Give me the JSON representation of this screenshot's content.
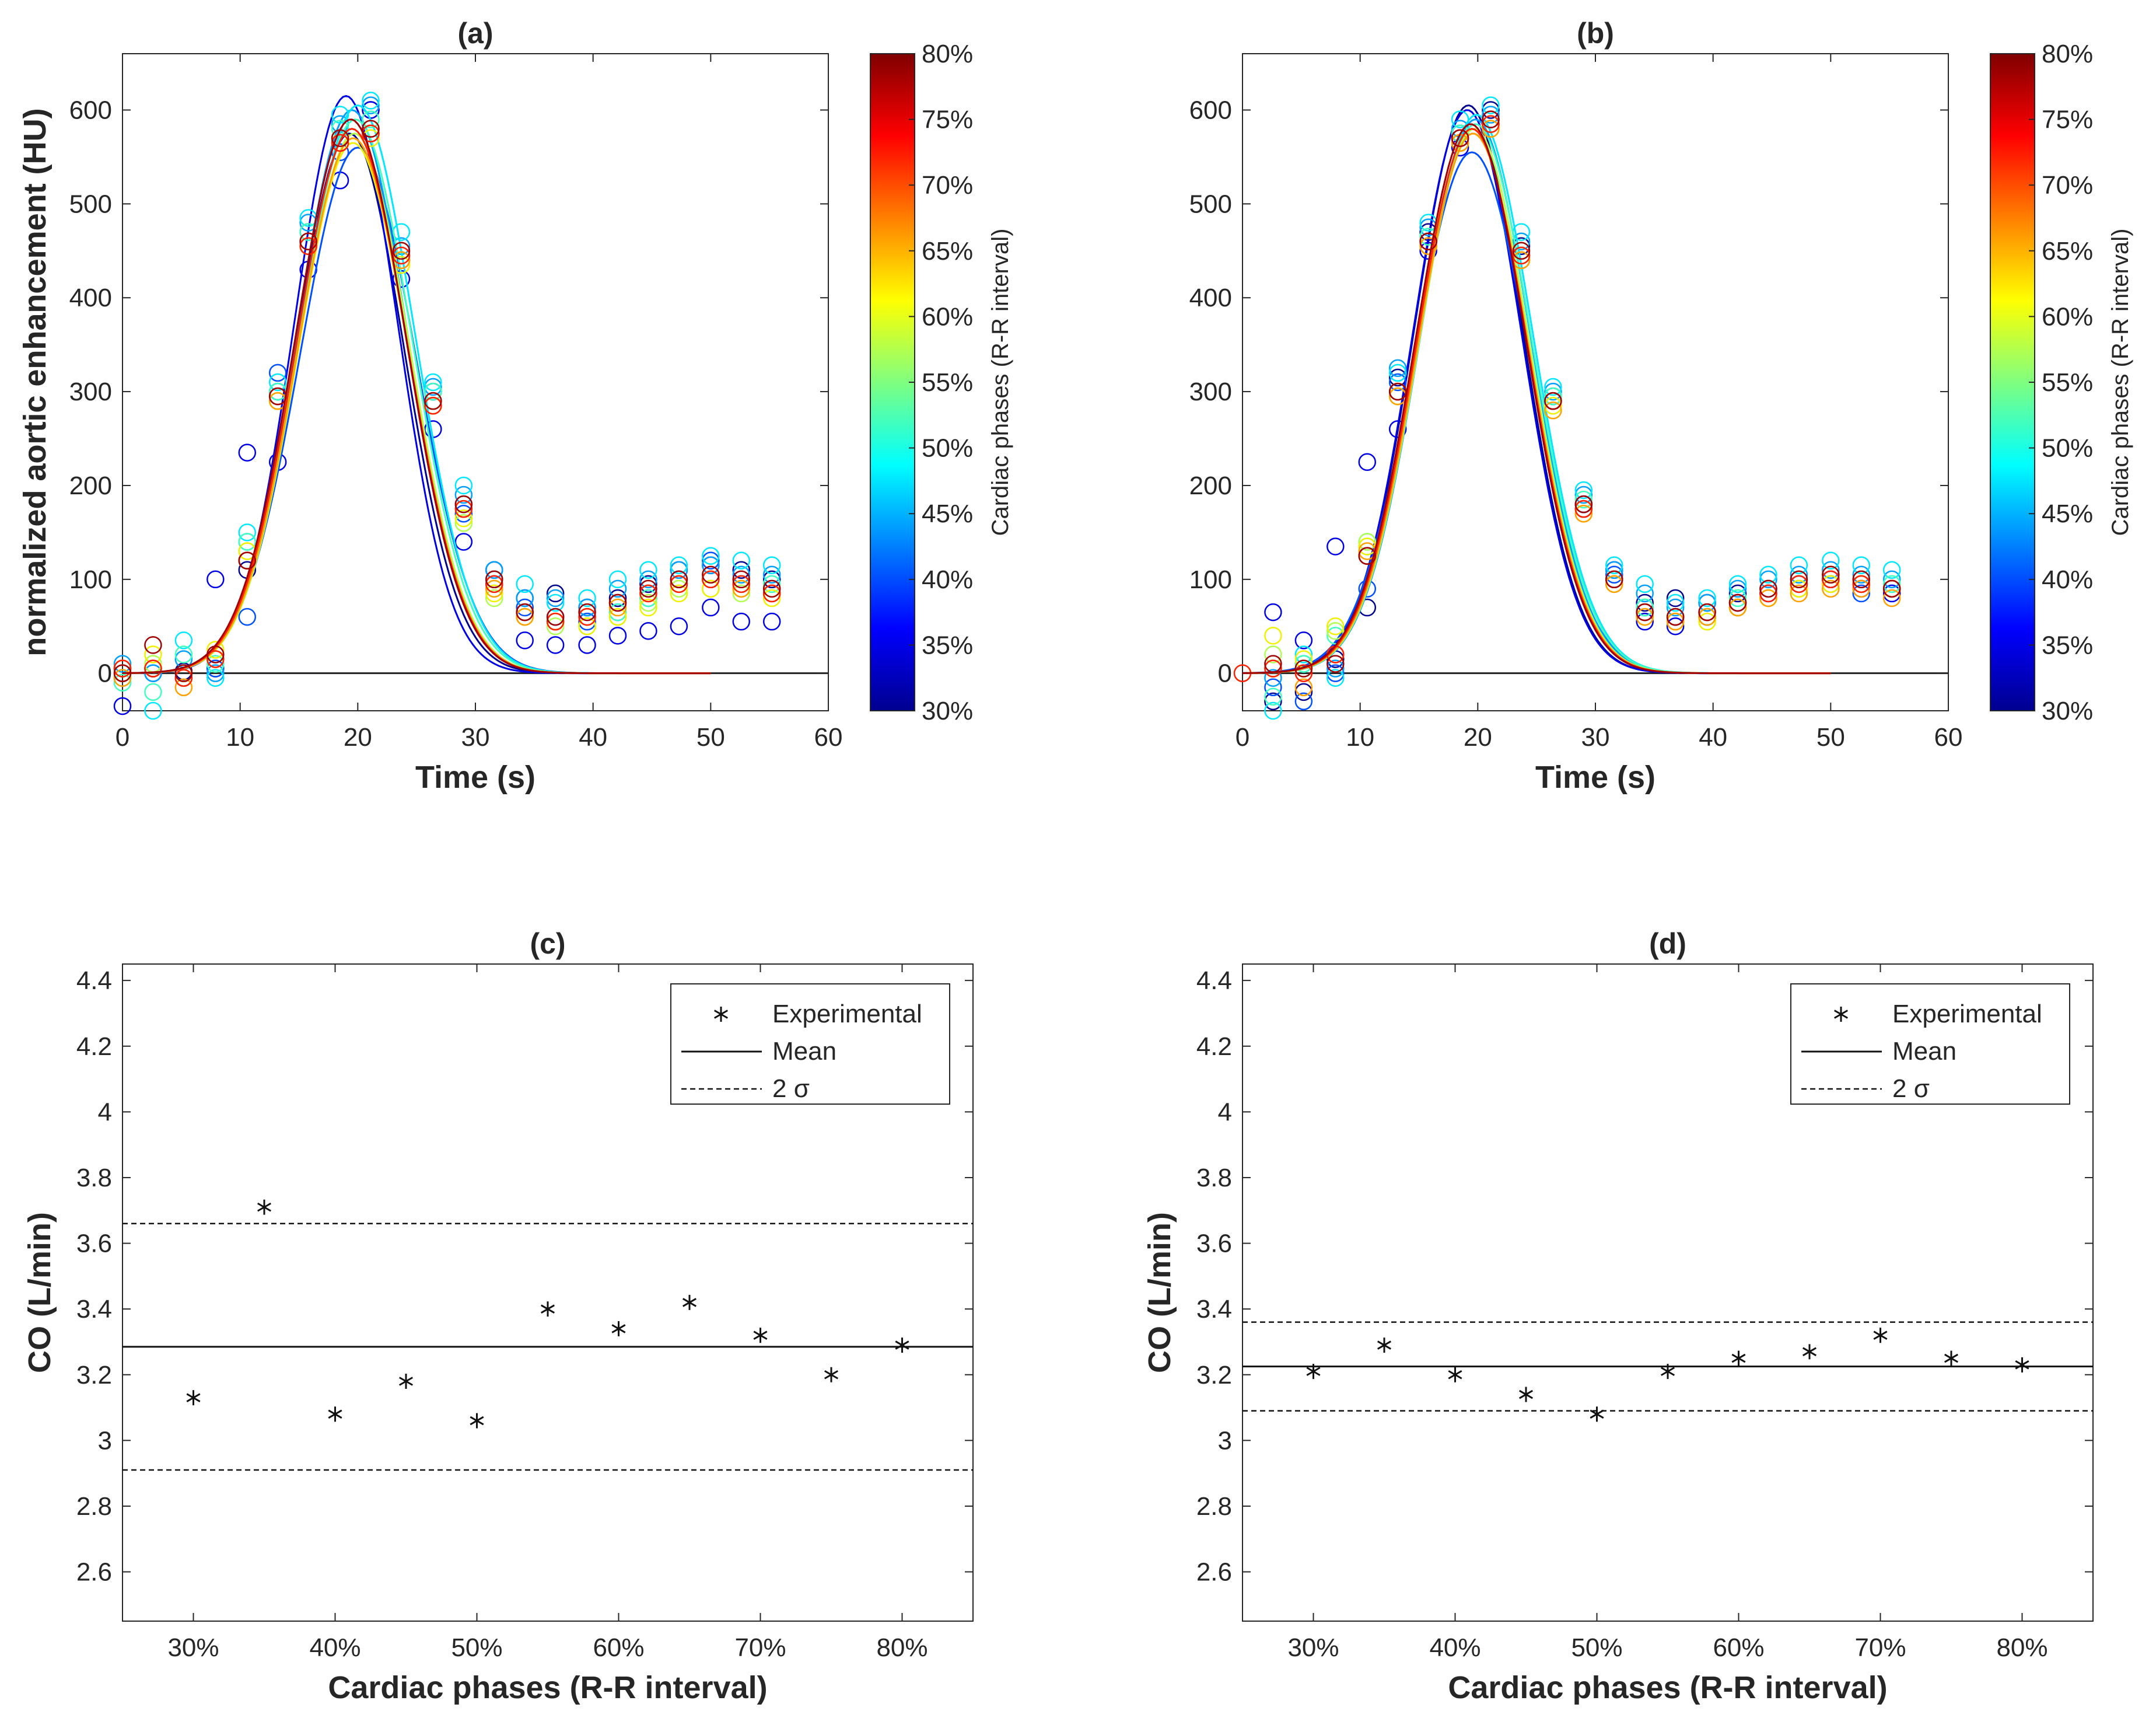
{
  "chart_data": [
    {
      "panel": "(a)",
      "type": "scatter",
      "title": "(a)",
      "xlabel": "Time (s)",
      "ylabel": "normalized aortic enhancement (HU)",
      "xlim": [
        0,
        60
      ],
      "ylim": [
        -40,
        660
      ],
      "xticks": [
        0,
        10,
        20,
        30,
        40,
        50,
        60
      ],
      "yticks": [
        0,
        100,
        200,
        300,
        400,
        500,
        600
      ],
      "sample_times": [
        0,
        2.6,
        5.2,
        7.9,
        10.6,
        13.2,
        15.8,
        18.5,
        21.1,
        23.7,
        26.4,
        29.0,
        31.6,
        34.2,
        36.8,
        39.5,
        42.1,
        44.7,
        47.3,
        50.0,
        52.6,
        55.2
      ],
      "series": [
        {
          "name": "30%",
          "color": "#00008f",
          "peak": 575,
          "peak_time": 19.3,
          "sigma": 4.6,
          "values": [
            5,
            5,
            2,
            5,
            110,
            300,
            470,
            570,
            600,
            440,
            300,
            180,
            110,
            80,
            85,
            70,
            80,
            95,
            110,
            115,
            110,
            100
          ]
        },
        {
          "name": "35%",
          "color": "#0000e6",
          "peak": 615,
          "peak_time": 19.0,
          "sigma": 4.4,
          "values": [
            -35,
            5,
            -5,
            100,
            235,
            225,
            430,
            525,
            600,
            420,
            260,
            140,
            100,
            35,
            30,
            30,
            40,
            45,
            50,
            70,
            55,
            55
          ]
        },
        {
          "name": "40%",
          "color": "#0050ff",
          "peak": 560,
          "peak_time": 20.0,
          "sigma": 4.9,
          "values": [
            0,
            0,
            -5,
            5,
            60,
            320,
            460,
            555,
            575,
            440,
            300,
            170,
            95,
            70,
            60,
            55,
            65,
            80,
            100,
            120,
            95,
            85
          ]
        },
        {
          "name": "45%",
          "color": "#00a0ff",
          "peak": 600,
          "peak_time": 19.5,
          "sigma": 4.7,
          "values": [
            10,
            0,
            15,
            0,
            140,
            300,
            480,
            585,
            605,
            455,
            305,
            190,
            110,
            80,
            80,
            70,
            90,
            100,
            110,
            115,
            105,
            105
          ]
        },
        {
          "name": "50%",
          "color": "#00e8ff",
          "peak": 605,
          "peak_time": 20.0,
          "sigma": 4.8,
          "values": [
            -5,
            -40,
            35,
            -5,
            150,
            310,
            485,
            595,
            610,
            470,
            310,
            200,
            100,
            95,
            75,
            80,
            100,
            110,
            115,
            125,
            120,
            115
          ]
        },
        {
          "name": "55%",
          "color": "#40ffbf",
          "peak": 590,
          "peak_time": 19.8,
          "sigma": 4.8,
          "values": [
            -10,
            -20,
            20,
            10,
            140,
            300,
            470,
            580,
            590,
            450,
            300,
            180,
            90,
            65,
            55,
            50,
            65,
            80,
            95,
            100,
            95,
            95
          ]
        },
        {
          "name": "60%",
          "color": "#b0ff50",
          "peak": 575,
          "peak_time": 19.7,
          "sigma": 4.7,
          "values": [
            0,
            10,
            0,
            15,
            130,
            290,
            460,
            570,
            580,
            440,
            290,
            160,
            80,
            60,
            50,
            50,
            60,
            75,
            90,
            90,
            85,
            90
          ]
        },
        {
          "name": "65%",
          "color": "#f0f000",
          "peak": 565,
          "peak_time": 19.6,
          "sigma": 4.7,
          "values": [
            5,
            20,
            -5,
            25,
            130,
            290,
            455,
            565,
            570,
            435,
            285,
            165,
            85,
            60,
            55,
            50,
            60,
            70,
            85,
            90,
            90,
            80
          ]
        },
        {
          "name": "70%",
          "color": "#ffa000",
          "peak": 570,
          "peak_time": 19.6,
          "sigma": 4.7,
          "values": [
            -5,
            5,
            -15,
            15,
            120,
            290,
            455,
            565,
            575,
            440,
            285,
            175,
            90,
            60,
            55,
            60,
            70,
            85,
            95,
            100,
            90,
            85
          ]
        },
        {
          "name": "75%",
          "color": "#ff2000",
          "peak": 580,
          "peak_time": 19.5,
          "sigma": 4.7,
          "values": [
            5,
            5,
            -5,
            15,
            120,
            295,
            455,
            565,
            575,
            445,
            285,
            175,
            95,
            65,
            55,
            60,
            75,
            85,
            95,
            100,
            95,
            85
          ]
        },
        {
          "name": "80%",
          "color": "#a00000",
          "peak": 590,
          "peak_time": 19.4,
          "sigma": 4.7,
          "values": [
            0,
            30,
            0,
            20,
            120,
            295,
            460,
            570,
            580,
            450,
            290,
            180,
            100,
            65,
            60,
            65,
            75,
            90,
            100,
            105,
            100,
            90
          ]
        }
      ],
      "colorbar": {
        "label": "Cardiac phases (R-R interval)",
        "range": [
          30,
          80
        ],
        "ticks": [
          "30%",
          "35%",
          "40%",
          "45%",
          "50%",
          "55%",
          "60%",
          "65%",
          "70%",
          "75%",
          "80%"
        ]
      }
    },
    {
      "panel": "(b)",
      "type": "scatter",
      "title": "(b)",
      "xlabel": "Time (s)",
      "ylabel": "normalized aortic enhancement (HU)",
      "xlim": [
        0,
        60
      ],
      "ylim": [
        -40,
        660
      ],
      "xticks": [
        0,
        10,
        20,
        30,
        40,
        50,
        60
      ],
      "yticks": [
        0,
        100,
        200,
        300,
        400,
        500,
        600
      ],
      "sample_times": [
        0,
        2.6,
        5.2,
        7.9,
        10.6,
        13.2,
        15.8,
        18.5,
        21.1,
        23.7,
        26.4,
        29.0,
        31.6,
        34.2,
        36.8,
        39.5,
        42.1,
        44.7,
        47.3,
        50.0,
        52.6,
        55.2
      ],
      "series": [
        {
          "name": "30%",
          "color": "#00008f",
          "peak": 605,
          "peak_time": 19.2,
          "sigma": 4.6,
          "values": [
            null,
            -30,
            -20,
            15,
            70,
            315,
            470,
            575,
            600,
            455,
            295,
            180,
            110,
            75,
            80,
            75,
            85,
            90,
            95,
            100,
            95,
            90
          ]
        },
        {
          "name": "35%",
          "color": "#0000e6",
          "peak": 600,
          "peak_time": 19.1,
          "sigma": 4.6,
          "values": [
            null,
            65,
            35,
            135,
            225,
            260,
            450,
            560,
            590,
            440,
            290,
            175,
            100,
            55,
            50,
            60,
            70,
            85,
            90,
            95,
            90,
            85
          ]
        },
        {
          "name": "40%",
          "color": "#0050ff",
          "peak": 555,
          "peak_time": 19.5,
          "sigma": 4.9,
          "values": [
            null,
            -15,
            -30,
            0,
            90,
            310,
            455,
            565,
            585,
            445,
            295,
            180,
            105,
            70,
            60,
            60,
            75,
            85,
            95,
            100,
            85,
            90
          ]
        },
        {
          "name": "45%",
          "color": "#00a0ff",
          "peak": 590,
          "peak_time": 19.8,
          "sigma": 4.7,
          "values": [
            null,
            -5,
            10,
            5,
            125,
            325,
            475,
            580,
            595,
            460,
            300,
            190,
            110,
            85,
            70,
            75,
            90,
            100,
            105,
            110,
            105,
            100
          ]
        },
        {
          "name": "50%",
          "color": "#00e8ff",
          "peak": 595,
          "peak_time": 19.9,
          "sigma": 4.8,
          "values": [
            null,
            -40,
            20,
            -5,
            140,
            320,
            480,
            590,
            605,
            470,
            305,
            195,
            115,
            95,
            75,
            80,
            95,
            105,
            115,
            120,
            115,
            110
          ]
        },
        {
          "name": "55%",
          "color": "#40ffbf",
          "peak": 585,
          "peak_time": 19.8,
          "sigma": 4.8,
          "values": [
            null,
            -25,
            10,
            40,
            135,
            300,
            465,
            575,
            590,
            450,
            295,
            185,
            100,
            70,
            60,
            60,
            80,
            90,
            95,
            105,
            100,
            95
          ]
        },
        {
          "name": "60%",
          "color": "#b0ff50",
          "peak": 580,
          "peak_time": 19.7,
          "sigma": 4.7,
          "values": [
            null,
            20,
            5,
            45,
            140,
            295,
            460,
            570,
            585,
            445,
            290,
            175,
            95,
            65,
            55,
            55,
            70,
            80,
            90,
            95,
            95,
            90
          ]
        },
        {
          "name": "65%",
          "color": "#f0f000",
          "peak": 575,
          "peak_time": 19.6,
          "sigma": 4.7,
          "values": [
            null,
            40,
            15,
            50,
            135,
            295,
            455,
            565,
            580,
            440,
            285,
            170,
            95,
            60,
            55,
            55,
            70,
            80,
            90,
            95,
            95,
            90
          ]
        },
        {
          "name": "70%",
          "color": "#ffa000",
          "peak": 575,
          "peak_time": 19.6,
          "sigma": 4.7,
          "values": [
            null,
            5,
            -15,
            20,
            130,
            295,
            455,
            565,
            580,
            440,
            280,
            170,
            95,
            60,
            55,
            60,
            70,
            80,
            85,
            90,
            90,
            80
          ]
        },
        {
          "name": "75%",
          "color": "#ff2000",
          "peak": 580,
          "peak_time": 19.5,
          "sigma": 4.7,
          "values": [
            0,
            5,
            0,
            20,
            125,
            300,
            460,
            570,
            585,
            445,
            290,
            175,
            100,
            65,
            60,
            65,
            75,
            85,
            95,
            100,
            95,
            90
          ]
        },
        {
          "name": "80%",
          "color": "#a00000",
          "peak": 585,
          "peak_time": 19.4,
          "sigma": 4.7,
          "values": [
            null,
            10,
            5,
            10,
            125,
            300,
            460,
            570,
            590,
            450,
            290,
            180,
            100,
            65,
            60,
            65,
            75,
            90,
            100,
            105,
            100,
            90
          ]
        }
      ],
      "colorbar": {
        "label": "Cardiac phases (R-R interval)",
        "range": [
          30,
          80
        ],
        "ticks": [
          "30%",
          "35%",
          "40%",
          "45%",
          "50%",
          "55%",
          "60%",
          "65%",
          "70%",
          "75%",
          "80%"
        ]
      }
    },
    {
      "panel": "(c)",
      "type": "scatter",
      "title": "(c)",
      "xlabel": "Cardiac phases (R-R interval)",
      "ylabel": "CO (L/min)",
      "categories": [
        "30%",
        "35%",
        "40%",
        "45%",
        "50%",
        "55%",
        "60%",
        "65%",
        "70%",
        "75%",
        "80%"
      ],
      "xtick_labels": [
        "30%",
        "40%",
        "50%",
        "60%",
        "70%",
        "80%"
      ],
      "xlim": [
        25,
        85
      ],
      "ylim": [
        2.45,
        4.45
      ],
      "yticks": [
        "2.6",
        "2.8",
        "3",
        "3.2",
        "3.4",
        "3.6",
        "3.8",
        "4",
        "4.2",
        "4.4"
      ],
      "values": [
        3.13,
        3.71,
        3.08,
        3.18,
        3.06,
        3.4,
        3.34,
        3.42,
        3.32,
        3.2,
        3.29
      ],
      "mean": 3.285,
      "two_sigma_upper": 3.66,
      "two_sigma_lower": 2.91,
      "legend": {
        "entries": [
          "Experimental",
          "Mean",
          "2 σ"
        ],
        "position": "top-right"
      }
    },
    {
      "panel": "(d)",
      "type": "scatter",
      "title": "(d)",
      "xlabel": "Cardiac phases (R-R interval)",
      "ylabel": "CO (L/min)",
      "categories": [
        "30%",
        "35%",
        "40%",
        "45%",
        "50%",
        "55%",
        "60%",
        "65%",
        "70%",
        "75%",
        "80%"
      ],
      "xtick_labels": [
        "30%",
        "40%",
        "50%",
        "60%",
        "70%",
        "80%"
      ],
      "xlim": [
        25,
        85
      ],
      "ylim": [
        2.45,
        4.45
      ],
      "yticks": [
        "2.6",
        "2.8",
        "3",
        "3.2",
        "3.4",
        "3.6",
        "3.8",
        "4",
        "4.2",
        "4.4"
      ],
      "values": [
        3.21,
        3.29,
        3.2,
        3.14,
        3.08,
        3.21,
        3.25,
        3.27,
        3.32,
        3.25,
        3.23
      ],
      "mean": 3.225,
      "two_sigma_upper": 3.36,
      "two_sigma_lower": 3.09,
      "legend": {
        "entries": [
          "Experimental",
          "Mean",
          "2 σ"
        ],
        "position": "top-right"
      }
    }
  ]
}
